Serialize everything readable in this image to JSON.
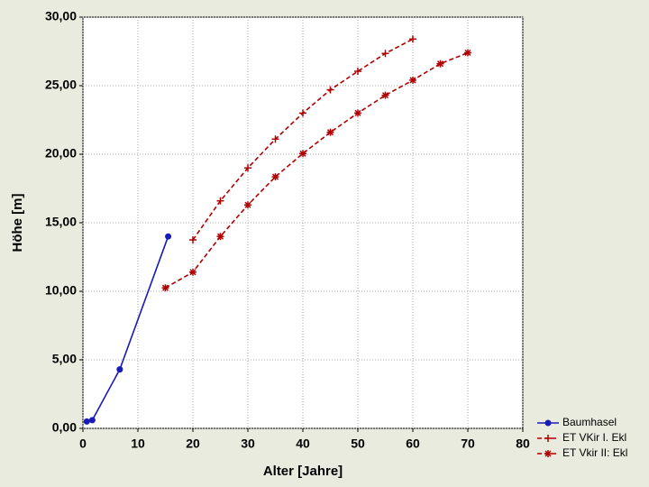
{
  "chart_data": {
    "type": "line",
    "xlabel": "Alter [Jahre]",
    "ylabel": "Höhe [m]",
    "xlim": [
      0,
      80
    ],
    "xticks": [
      0,
      10,
      20,
      30,
      40,
      50,
      60,
      70,
      80
    ],
    "ylim": [
      0,
      30
    ],
    "yticks": [
      {
        "value": 0,
        "label": "0,00"
      },
      {
        "value": 5,
        "label": "5,00"
      },
      {
        "value": 10,
        "label": "10,00"
      },
      {
        "value": 15,
        "label": "15,00"
      },
      {
        "value": 20,
        "label": "20,00"
      },
      {
        "value": 25,
        "label": "25,00"
      },
      {
        "value": 30,
        "label": "30,00"
      }
    ],
    "grid": true,
    "legend": "lower right outside",
    "series": [
      {
        "name": "Baumhasel",
        "color": "#1a1ab8",
        "line": "solid",
        "marker": "circle",
        "x": [
          0.7,
          1.7,
          6.7,
          15.5
        ],
        "values": [
          0.5,
          0.6,
          4.3,
          14.0
        ]
      },
      {
        "name": "ET VKir I. Ekl",
        "color": "#b00000",
        "line": "dashed",
        "marker": "plus",
        "x": [
          20,
          25,
          30,
          35,
          40,
          45,
          50,
          55,
          60
        ],
        "values": [
          13.75,
          16.6,
          19.0,
          21.1,
          23.0,
          24.7,
          26.05,
          27.35,
          28.4
        ]
      },
      {
        "name": "ET Vkir II: Ekl",
        "color": "#b00000",
        "line": "dashed",
        "marker": "asterisk",
        "x": [
          15,
          20,
          25,
          30,
          35,
          40,
          45,
          50,
          55,
          60,
          65,
          70
        ],
        "values": [
          10.25,
          11.4,
          14.0,
          16.3,
          18.35,
          20.05,
          21.6,
          23.0,
          24.3,
          25.4,
          26.6,
          27.4
        ]
      }
    ]
  }
}
